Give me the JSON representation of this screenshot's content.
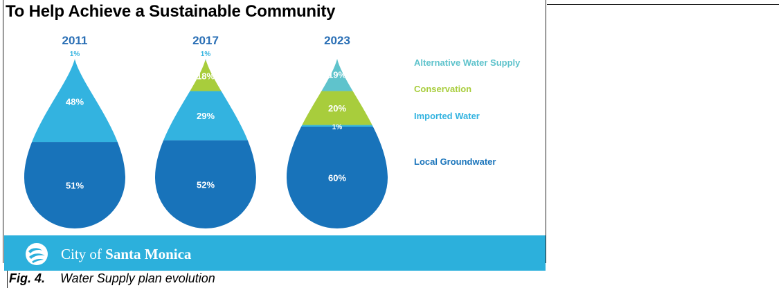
{
  "title": "To Help Achieve a Sustainable Community",
  "footer": {
    "city_prefix": "City of",
    "city_name": "Santa Monica",
    "logo_icon": "santa-monica-wave-logo"
  },
  "caption": {
    "label": "Fig. 4.",
    "text": "Water Supply plan evolution"
  },
  "colors": {
    "alternative_water_supply": "#5fc3cc",
    "conservation": "#a8cd3c",
    "imported_water": "#33b3e0",
    "local_groundwater": "#1873ba",
    "year_label": "#2a6fb5",
    "footer_band": "#2cb0dc"
  },
  "chart_data": {
    "type": "stacked-drop",
    "title": "To Help Achieve a Sustainable Community",
    "categories": [
      "2011",
      "2017",
      "2023"
    ],
    "legend": {
      "placement": "right",
      "entries": [
        "Alternative Water Supply",
        "Conservation",
        "Imported Water",
        "Local Groundwater"
      ]
    },
    "series": [
      {
        "name": "Alternative Water Supply",
        "values": [
          1,
          1,
          19
        ],
        "labels": [
          "1%",
          "1%",
          "19%"
        ],
        "color": "#5fc3cc"
      },
      {
        "name": "Conservation",
        "values": [
          0,
          18,
          20
        ],
        "labels": [
          "",
          "18%",
          "20%"
        ],
        "color": "#a8cd3c"
      },
      {
        "name": "Imported Water",
        "values": [
          48,
          29,
          1
        ],
        "labels": [
          "48%",
          "29%",
          "1%"
        ],
        "color": "#33b3e0"
      },
      {
        "name": "Local Groundwater",
        "values": [
          51,
          52,
          60
        ],
        "labels": [
          "51%",
          "52%",
          "60%"
        ],
        "color": "#1873ba"
      }
    ]
  }
}
